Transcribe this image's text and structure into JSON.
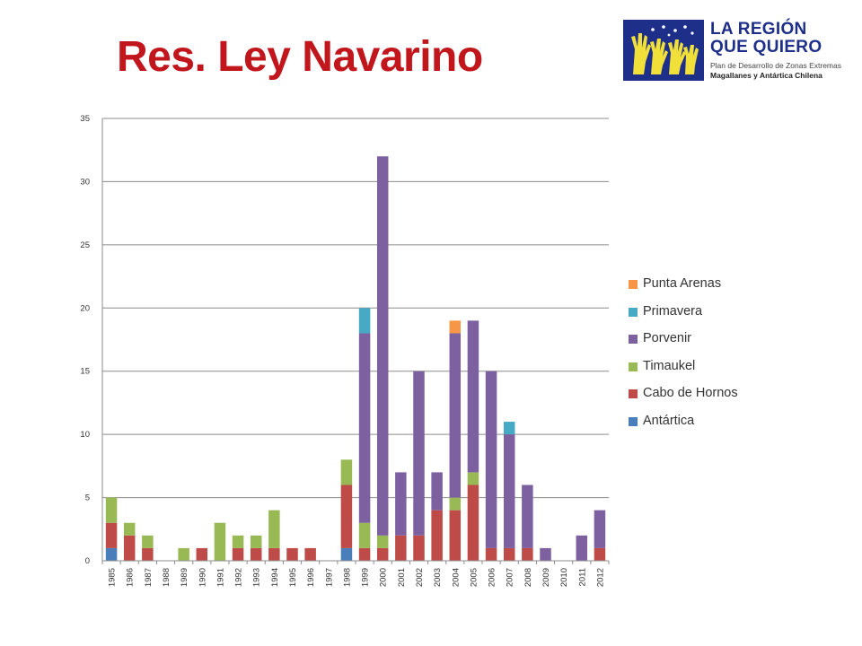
{
  "title": "Res. Ley Navarino",
  "logo": {
    "line1": "LA REGIÓN",
    "line2": "QUE QUIERO",
    "sub1": "Plan de Desarrollo de Zonas Extremas",
    "sub2": "Magallanes y Antártica Chilena"
  },
  "chart_data": {
    "type": "bar",
    "stacked": true,
    "categories": [
      "1985",
      "1986",
      "1987",
      "1988",
      "1989",
      "1990",
      "1991",
      "1992",
      "1993",
      "1994",
      "1995",
      "1996",
      "1997",
      "1998",
      "1999",
      "2000",
      "2001",
      "2002",
      "2003",
      "2004",
      "2005",
      "2006",
      "2007",
      "2008",
      "2009",
      "2010",
      "2011",
      "2012"
    ],
    "series": [
      {
        "name": "Antártica",
        "color": "#4a7ebb",
        "values": [
          1,
          0,
          0,
          0,
          0,
          0,
          0,
          0,
          0,
          0,
          0,
          0,
          0,
          1,
          0,
          0,
          0,
          0,
          0,
          0,
          0,
          0,
          0,
          0,
          0,
          0,
          0,
          0
        ]
      },
      {
        "name": "Cabo de Hornos",
        "color": "#be4b48",
        "values": [
          2,
          2,
          1,
          0,
          0,
          1,
          0,
          1,
          1,
          1,
          1,
          1,
          0,
          5,
          1,
          1,
          2,
          2,
          4,
          4,
          6,
          1,
          1,
          1,
          0,
          0,
          0,
          1
        ]
      },
      {
        "name": "Timaukel",
        "color": "#98b954",
        "values": [
          2,
          1,
          1,
          0,
          1,
          0,
          3,
          1,
          1,
          3,
          0,
          0,
          0,
          2,
          2,
          1,
          0,
          0,
          0,
          1,
          1,
          0,
          0,
          0,
          0,
          0,
          0,
          0
        ]
      },
      {
        "name": "Porvenir",
        "color": "#7d60a0",
        "values": [
          0,
          0,
          0,
          0,
          0,
          0,
          0,
          0,
          0,
          0,
          0,
          0,
          0,
          0,
          15,
          30,
          5,
          13,
          3,
          13,
          12,
          14,
          9,
          5,
          1,
          0,
          2,
          3
        ]
      },
      {
        "name": "Primavera",
        "color": "#46aac5",
        "values": [
          0,
          0,
          0,
          0,
          0,
          0,
          0,
          0,
          0,
          0,
          0,
          0,
          0,
          0,
          2,
          0,
          0,
          0,
          0,
          0,
          0,
          0,
          1,
          0,
          0,
          0,
          0,
          0
        ]
      },
      {
        "name": "Punta Arenas",
        "color": "#f79646",
        "values": [
          0,
          0,
          0,
          0,
          0,
          0,
          0,
          0,
          0,
          0,
          0,
          0,
          0,
          0,
          0,
          0,
          0,
          0,
          0,
          1,
          0,
          0,
          0,
          0,
          0,
          0,
          0,
          0
        ]
      }
    ],
    "yticks": [
      0,
      5,
      10,
      15,
      20,
      25,
      30,
      35
    ],
    "ylim": [
      0,
      35
    ],
    "grid": true,
    "legend_position": "right",
    "legend_order": [
      "Punta Arenas",
      "Primavera",
      "Porvenir",
      "Timaukel",
      "Cabo de Hornos",
      "Antártica"
    ]
  }
}
